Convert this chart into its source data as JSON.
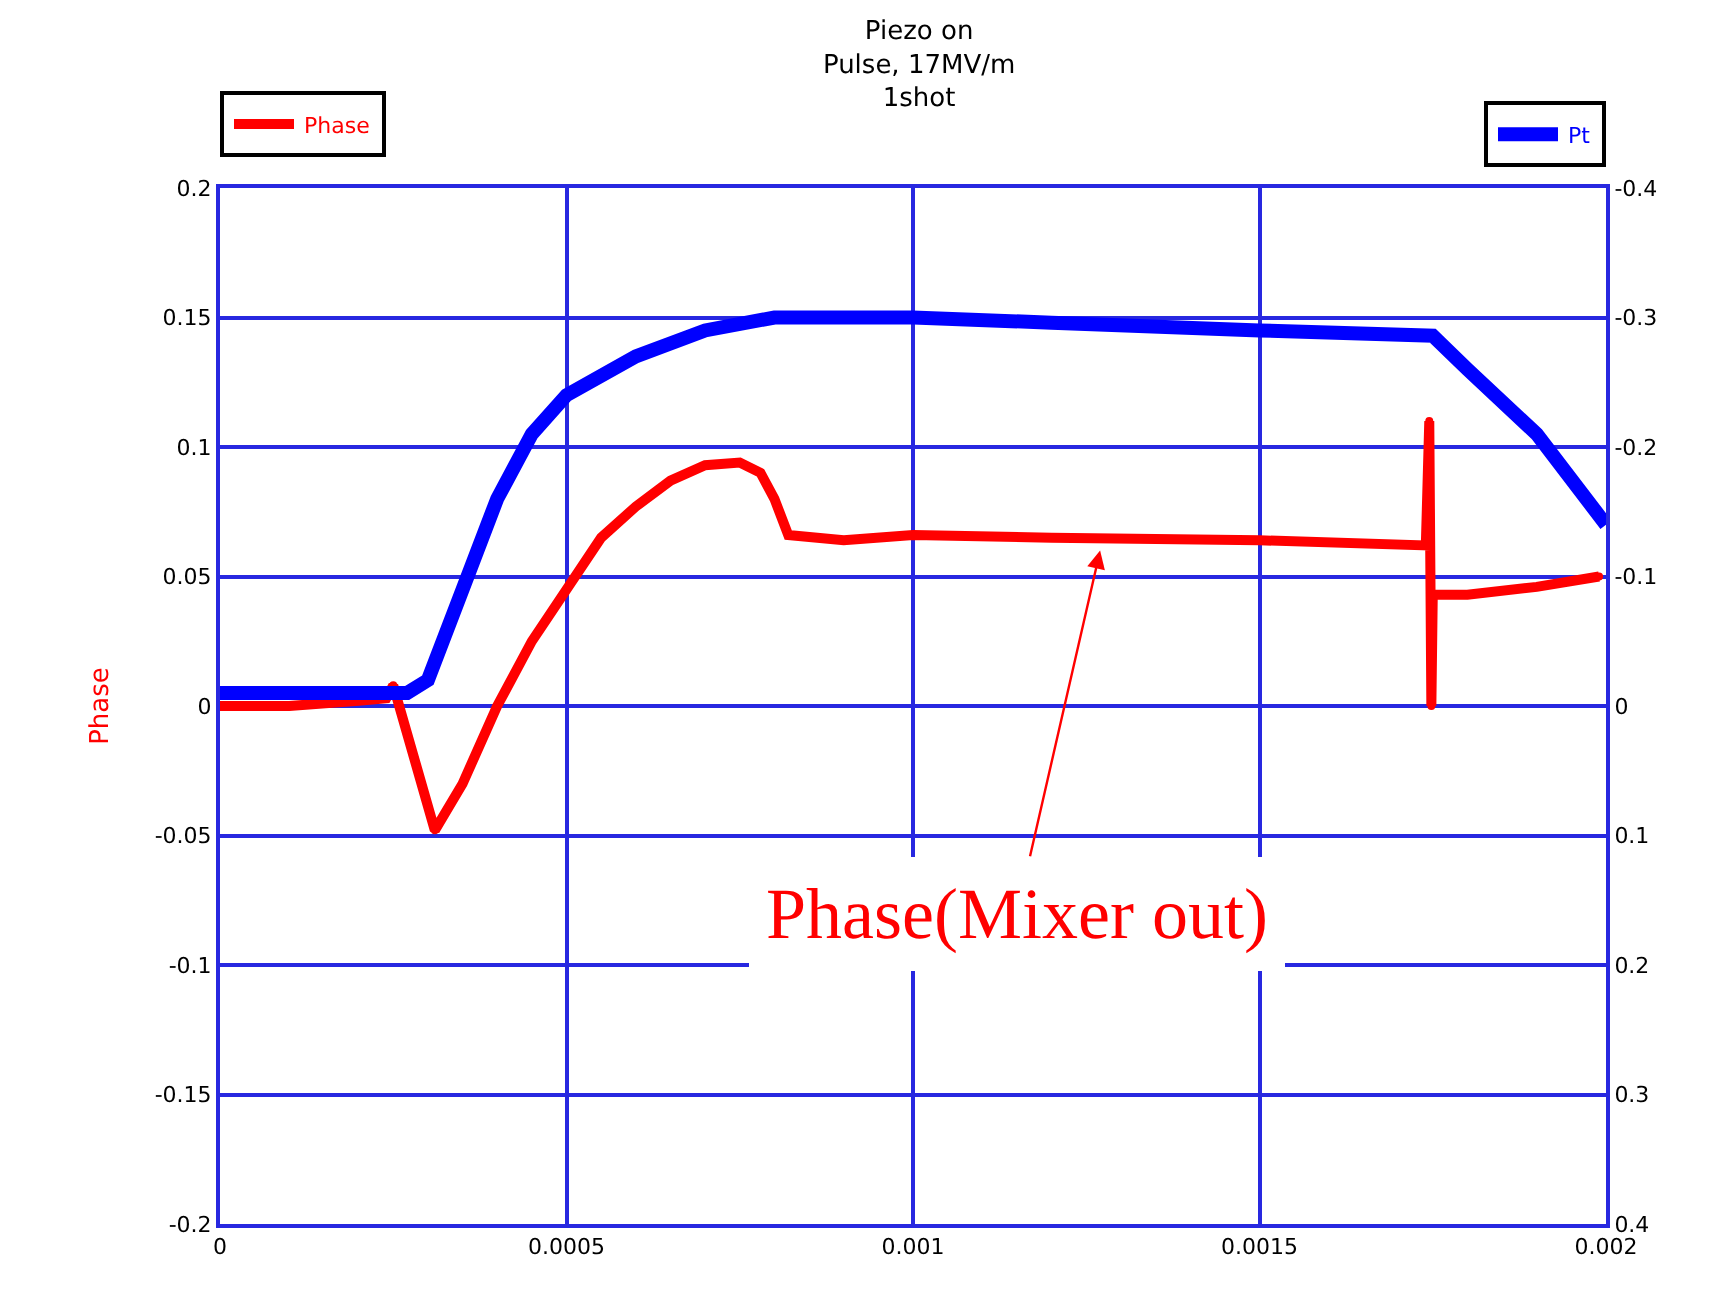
{
  "chart_data": {
    "type": "line",
    "title": "Piezo on\nPulse, 17MV/m\n1shot",
    "ylabel": "Phase",
    "xlim": [
      0,
      0.002
    ],
    "xticks": [
      0,
      0.0005,
      0.001,
      0.0015,
      0.002
    ],
    "ylim": [
      -0.2,
      0.2
    ],
    "yticks": [
      -0.2,
      -0.15,
      -0.1,
      -0.05,
      0,
      0.05,
      0.1,
      0.15,
      0.2
    ],
    "y2lim": [
      0.4,
      -0.4
    ],
    "y2ticks": [
      0.4,
      0.3,
      0.2,
      0.1,
      0,
      -0.1,
      -0.2,
      -0.3,
      -0.4
    ],
    "grid": true,
    "legend": "top",
    "line_style": "solid",
    "series": [
      {
        "name": "Phase",
        "color": "#ff0000",
        "marker": "circle",
        "x": [
          0,
          0.0001,
          0.0002,
          0.00024,
          0.00025,
          0.00031,
          0.00035,
          0.0004,
          0.00045,
          0.0005,
          0.00055,
          0.0006,
          0.00065,
          0.0007,
          0.00075,
          0.00078,
          0.0008,
          0.00082,
          0.0009,
          0.001,
          0.0012,
          0.0015,
          0.00174,
          0.001745,
          0.001748,
          0.00175,
          0.0018,
          0.0019,
          0.00199
        ],
        "values": [
          0,
          0,
          0.002,
          0.003,
          0.008,
          -0.048,
          -0.03,
          0,
          0.025,
          0.045,
          0.065,
          0.077,
          0.087,
          0.093,
          0.094,
          0.09,
          0.08,
          0.066,
          0.064,
          0.066,
          0.065,
          0.064,
          0.062,
          0.11,
          0,
          0.043,
          0.043,
          0.046,
          0.05
        ]
      },
      {
        "name": "Pt",
        "color": "#0000ff",
        "axis": "y2",
        "marker": "none",
        "x": [
          0,
          0.0001,
          0.0002,
          0.00027,
          0.0003,
          0.00035,
          0.0004,
          0.00045,
          0.0005,
          0.0006,
          0.0007,
          0.0008,
          0.001,
          0.0012,
          0.0015,
          0.00175,
          0.0018,
          0.0019,
          0.002
        ],
        "values": [
          -0.01,
          -0.01,
          -0.01,
          -0.01,
          -0.02,
          -0.09,
          -0.16,
          -0.21,
          -0.24,
          -0.27,
          -0.29,
          -0.3,
          -0.3,
          -0.296,
          -0.29,
          -0.286,
          -0.26,
          -0.21,
          -0.14
        ]
      }
    ],
    "annotations": [
      {
        "text": "Phase(Mixer out)",
        "x": 0.00127,
        "y": 0.06
      }
    ]
  }
}
